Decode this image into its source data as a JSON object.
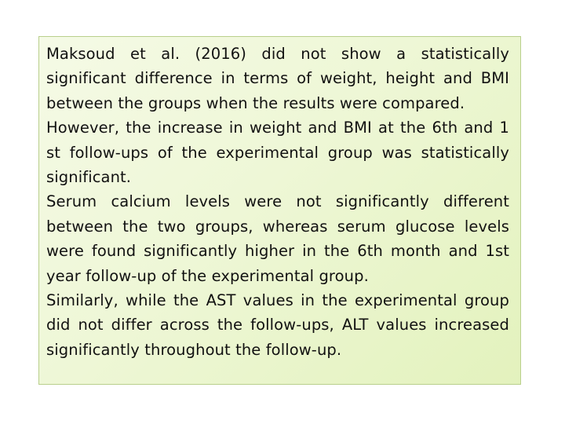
{
  "paragraphs": [
    "Maksoud et al. (2016) did not show a statistically significant difference in terms of weight, height and BMI between the groups when the results were compared.",
    "However, the increase in weight and BMI at the 6th and 1 st follow-ups of the experimental group was statistically significant.",
    "Serum calcium levels were not significantly different between the two groups, whereas serum glucose levels were found significantly higher in the 6th month and 1st year follow-up of the experimental group.",
    "Similarly, while the AST values in the experimental group did not differ across the follow-ups, ALT values increased significantly throughout the follow-up."
  ],
  "colors": {
    "box_border": "#b9cf8c",
    "box_fill_light": "#f5fae6",
    "box_fill_dark": "#e3f2bd",
    "text": "#111111"
  }
}
